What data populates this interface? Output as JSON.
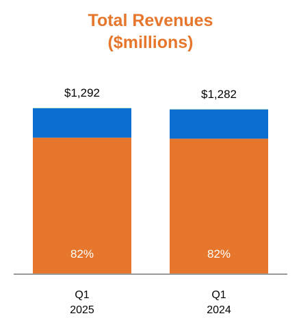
{
  "colors": {
    "title": "#E5762B",
    "segment_large": "#E5762B",
    "segment_middle": "#0A6FD1",
    "segment_top": "#C9EBC8",
    "baseline": "#999999"
  },
  "chart_data": {
    "type": "bar",
    "stacked": true,
    "title": "Total Revenues",
    "subtitle": "($millions)",
    "categories": [
      {
        "line1": "Q1",
        "line2": "2025"
      },
      {
        "line1": "Q1",
        "line2": "2024"
      }
    ],
    "totals": [
      1292,
      1282
    ],
    "total_labels": [
      "$1,292",
      "$1,282"
    ],
    "share_labels": [
      "82%",
      "82%"
    ],
    "series": [
      {
        "values": [
          1059,
          1051
        ],
        "color_key": "segment_large"
      },
      {
        "values": [
          228,
          227
        ],
        "color_key": "segment_middle"
      },
      {
        "values": [
          5,
          4
        ],
        "color_key": "segment_top"
      }
    ],
    "ylim": [
      0,
      1292
    ],
    "legend": "none",
    "grid": false
  }
}
